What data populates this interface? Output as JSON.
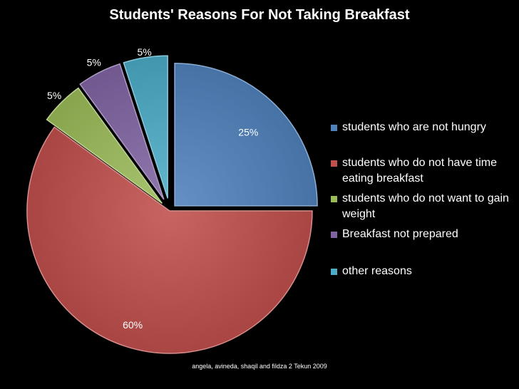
{
  "chart_data": {
    "type": "pie",
    "title": "Students' Reasons For Not Taking Breakfast",
    "series": [
      {
        "name": "students who are not hungry",
        "value": 25,
        "label": "25%",
        "color": "#4F81BD"
      },
      {
        "name": "students who do not have time eating breakfast",
        "value": 60,
        "label": "60%",
        "color": "#C0504D"
      },
      {
        "name": "students who do not want to gain weight",
        "value": 5,
        "label": "5%",
        "color": "#9BBB59"
      },
      {
        "name": "Breakfast not prepared",
        "value": 5,
        "label": "5%",
        "color": "#8064A2"
      },
      {
        "name": "other reasons",
        "value": 5,
        "label": "5%",
        "color": "#4BACC6"
      }
    ],
    "legend_position": "right",
    "exploded": true
  },
  "footer": "angela, avineda, shaqil and fildza 2 Tekun 2009"
}
